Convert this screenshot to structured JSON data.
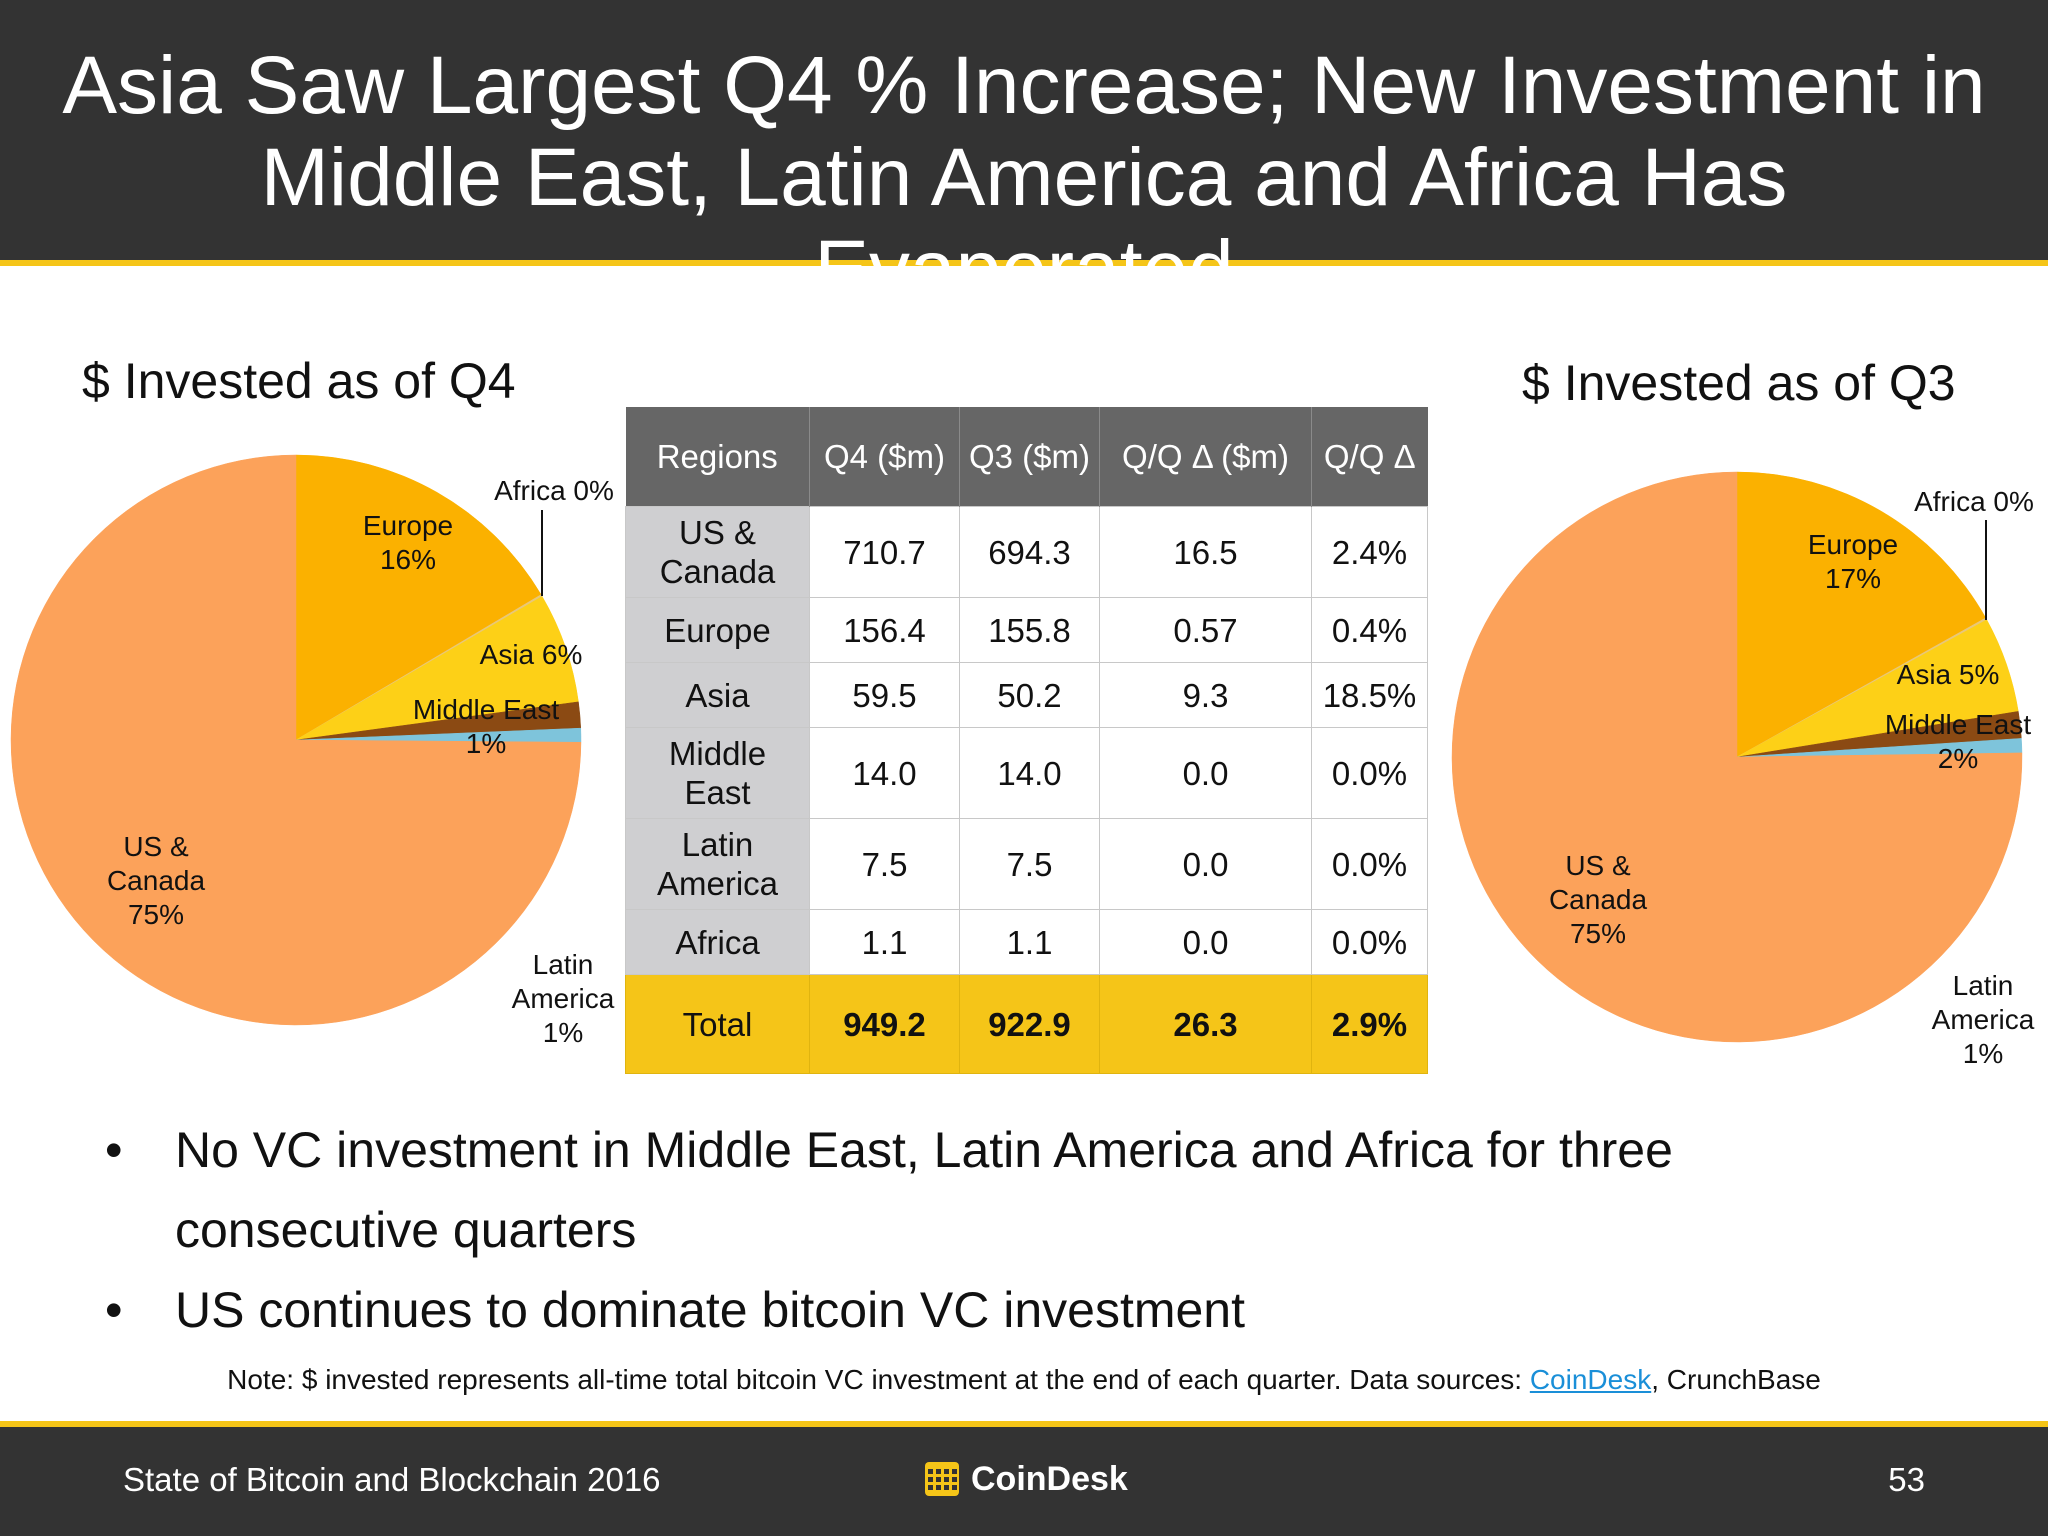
{
  "header": {
    "title_line1": "Asia Saw Largest Q4 % Increase; New Investment in",
    "title_line2": "Middle East, Latin America and Africa Has Evaporated"
  },
  "chart_data": [
    {
      "type": "pie",
      "title": "$ Invested as of Q4",
      "slices": [
        {
          "name": "Europe",
          "value": 156.4,
          "label": "Europe\n16%",
          "color": "#fbb100"
        },
        {
          "name": "Africa",
          "value": 1.1,
          "label": "Africa 0%",
          "color": "#e8c77a"
        },
        {
          "name": "Asia",
          "value": 59.5,
          "label": "Asia 6%",
          "color": "#fdd017"
        },
        {
          "name": "Middle East",
          "value": 14.0,
          "label": "Middle East\n1%",
          "color": "#8b4a13"
        },
        {
          "name": "Latin America",
          "value": 7.5,
          "label": "Latin\nAmerica\n1%",
          "color": "#7ec4db"
        },
        {
          "name": "US & Canada",
          "value": 710.7,
          "label": "US &\nCanada\n75%",
          "color": "#fca25a"
        }
      ]
    },
    {
      "type": "pie",
      "title": "$ Invested as of Q3",
      "slices": [
        {
          "name": "Europe",
          "value": 155.8,
          "label": "Europe\n17%",
          "color": "#fbb100"
        },
        {
          "name": "Africa",
          "value": 1.1,
          "label": "Africa 0%",
          "color": "#e8c77a"
        },
        {
          "name": "Asia",
          "value": 50.2,
          "label": "Asia 5%",
          "color": "#fdd017"
        },
        {
          "name": "Middle East",
          "value": 14.0,
          "label": "Middle East\n2%",
          "color": "#8b4a13"
        },
        {
          "name": "Latin America",
          "value": 7.5,
          "label": "Latin\nAmerica\n1%",
          "color": "#7ec4db"
        },
        {
          "name": "US & Canada",
          "value": 694.3,
          "label": "US &\nCanada\n75%",
          "color": "#fca25a"
        }
      ]
    },
    {
      "type": "table",
      "columns": [
        "Regions",
        "Q4 ($m)",
        "Q3 ($m)",
        "Q/Q Δ ($m)",
        "Q/Q Δ"
      ],
      "rows": [
        [
          "US & Canada",
          "710.7",
          "694.3",
          "16.5",
          "2.4%"
        ],
        [
          "Europe",
          "156.4",
          "155.8",
          "0.57",
          "0.4%"
        ],
        [
          "Asia",
          "59.5",
          "50.2",
          "9.3",
          "18.5%"
        ],
        [
          "Middle East",
          "14.0",
          "14.0",
          "0.0",
          "0.0%"
        ],
        [
          "Latin America",
          "7.5",
          "7.5",
          "0.0",
          "0.0%"
        ],
        [
          "Africa",
          "1.1",
          "1.1",
          "0.0",
          "0.0%"
        ]
      ],
      "total": [
        "Total",
        "949.2",
        "922.9",
        "26.3",
        "2.9%"
      ]
    }
  ],
  "bullets": [
    {
      "mark": "•",
      "line1": "No VC investment in Middle East, Latin America and Africa for three",
      "line2": "consecutive quarters"
    },
    {
      "mark": "•",
      "line1": "US continues to dominate bitcoin VC investment",
      "line2": ""
    }
  ],
  "note": {
    "prefix": "Note: $ invested represents all-time total bitcoin VC investment at the end of each quarter. Data sources: ",
    "link": "CoinDesk",
    "suffix": ", CrunchBase"
  },
  "footer": {
    "left_text": "State of Bitcoin and Blockchain 2016",
    "logo_text": "CoinDesk",
    "page_number": "53",
    "logo_icon": "coindesk-logo-icon"
  }
}
